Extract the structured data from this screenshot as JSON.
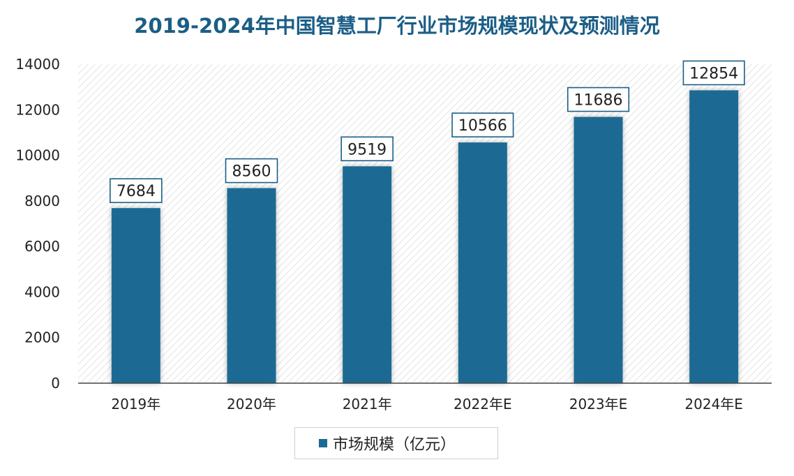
{
  "colors": {
    "bar": "#1a6a93",
    "title": "#1b5e86",
    "axis": "#444444"
  },
  "chart_data": {
    "type": "bar",
    "title": "2019-2024年中国智慧工厂行业市场规模现状及预测情况",
    "categories": [
      "2019年",
      "2020年",
      "2021年",
      "2022年E",
      "2023年E",
      "2024年E"
    ],
    "series": [
      {
        "name": "市场规模（亿元）",
        "values": [
          7684,
          8560,
          9519,
          10566,
          11686,
          12854
        ]
      }
    ],
    "yticks": [
      0,
      2000,
      4000,
      6000,
      8000,
      10000,
      12000,
      14000
    ],
    "ylim": [
      0,
      14000
    ],
    "xlabel": "",
    "ylabel": "",
    "grid": false,
    "data_labels": true,
    "legend_position": "bottom"
  }
}
